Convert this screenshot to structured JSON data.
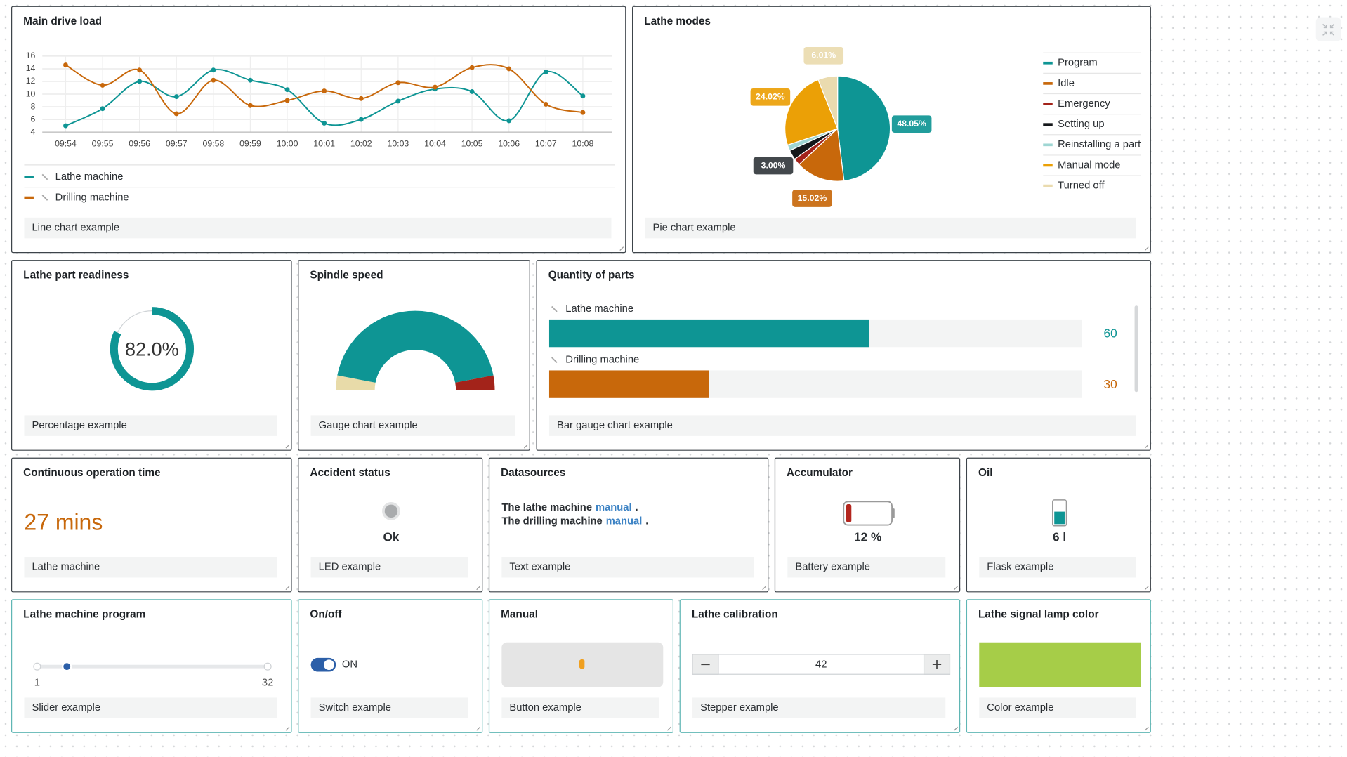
{
  "widgets": [
    {
      "title": "Main drive load",
      "footer": "Line chart example",
      "chart_data": {
        "type": "line",
        "x": [
          "09:54",
          "09:55",
          "09:56",
          "09:57",
          "09:58",
          "09:59",
          "10:00",
          "10:01",
          "10:02",
          "10:03",
          "10:04",
          "10:05",
          "10:06",
          "10:07",
          "10:08"
        ],
        "series": [
          {
            "name": "Lathe machine",
            "color": "#0e9594",
            "values": [
              5.0,
              7.7,
              12.0,
              9.6,
              13.8,
              12.2,
              10.7,
              5.4,
              6.0,
              8.9,
              10.8,
              10.4,
              5.8,
              13.5,
              9.7
            ]
          },
          {
            "name": "Drilling machine",
            "color": "#c8680b",
            "values": [
              14.6,
              11.4,
              13.8,
              6.9,
              12.2,
              8.2,
              9.0,
              10.5,
              9.3,
              11.8,
              11.1,
              14.2,
              14.0,
              8.4,
              7.1
            ]
          }
        ],
        "ylim": [
          4,
          16
        ],
        "yticks": [
          4,
          6,
          8,
          10,
          12,
          14,
          16
        ],
        "grid": true
      }
    },
    {
      "title": "Lathe modes",
      "footer": "Pie chart example",
      "chart_data": {
        "type": "pie",
        "categories": [
          "Program",
          "Idle",
          "Emergency",
          "Setting up",
          "Reinstalling a part",
          "Manual mode",
          "Turned off"
        ],
        "values": [
          48.05,
          15.02,
          2.1,
          3.0,
          1.8,
          24.02,
          6.01
        ],
        "value_labels": [
          "48.05%",
          "15.02%",
          null,
          "3.00%",
          null,
          "24.02%",
          "6.01%"
        ],
        "colors": [
          "#0e9594",
          "#c8680b",
          "#a3231a",
          "#14171a",
          "#9fd6d3",
          "#eba006",
          "#eadbaf"
        ]
      }
    },
    {
      "title": "Lathe part readiness",
      "footer": "Percentage example",
      "chart_data": {
        "type": "donut",
        "value": 82.0,
        "value_label": "82.0%",
        "ylim": [
          0,
          100
        ],
        "color": "#0e9594"
      }
    },
    {
      "title": "Spindle speed",
      "footer": "Gauge chart example",
      "chart_data": {
        "type": "gauge",
        "values": [
          6,
          88,
          6
        ],
        "colors": [
          "#e8dba9",
          "#0e9594",
          "#a3231a"
        ]
      }
    },
    {
      "title": "Quantity of parts",
      "footer": "Bar gauge chart example",
      "chart_data": {
        "type": "bar",
        "categories": [
          "Lathe machine",
          "Drilling machine"
        ],
        "values": [
          60,
          30
        ],
        "colors": [
          "#0e9594",
          "#c8680b"
        ],
        "xlim": [
          0,
          100
        ]
      }
    },
    {
      "title": "Continuous operation time",
      "footer": "Lathe machine",
      "value": "27 mins"
    },
    {
      "title": "Accident status",
      "footer": "LED example",
      "status": "Ok"
    },
    {
      "title": "Datasources",
      "footer": "Text example",
      "lines": [
        [
          "The lathe machine",
          "manual",
          "."
        ],
        [
          "The drilling machine",
          "manual",
          "."
        ]
      ]
    },
    {
      "title": "Accumulator",
      "footer": "Battery example",
      "value": 12,
      "value_label": "12 %",
      "ylim": [
        0,
        100
      ]
    },
    {
      "title": "Oil",
      "footer": "Flask example",
      "value": 6,
      "value_label": "6 l",
      "ylim": [
        0,
        10
      ]
    },
    {
      "title": "Lathe machine program",
      "footer": "Slider example",
      "value": 5,
      "min": 1,
      "max": 32
    },
    {
      "title": "On/off",
      "footer": "Switch example",
      "state": "ON"
    },
    {
      "title": "Manual",
      "footer": "Button example"
    },
    {
      "title": "Lathe calibration",
      "footer": "Stepper example",
      "value": 42
    },
    {
      "title": "Lathe signal lamp color",
      "footer": "Color example",
      "color": "#a6cd48"
    }
  ]
}
